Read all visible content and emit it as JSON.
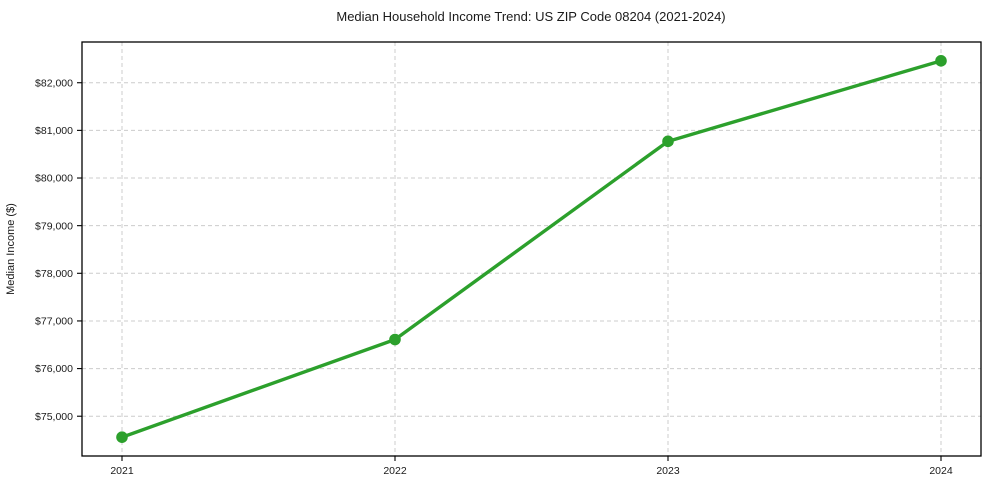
{
  "figure": {
    "background_color": "#ffffff"
  },
  "chart_data": {
    "type": "line",
    "title": "Median Household Income Trend: US ZIP Code 08204 (2021-2024)",
    "xlabel": "",
    "ylabel": "Median Income ($)",
    "categories": [
      "2021",
      "2022",
      "2023",
      "2024"
    ],
    "values": [
      74560,
      76610,
      80770,
      82460
    ],
    "ylim": [
      74165,
      82855
    ],
    "y_ticks": [
      {
        "value": 75000,
        "label": "$75,000"
      },
      {
        "value": 76000,
        "label": "$76,000"
      },
      {
        "value": 77000,
        "label": "$77,000"
      },
      {
        "value": 78000,
        "label": "$78,000"
      },
      {
        "value": 79000,
        "label": "$79,000"
      },
      {
        "value": 80000,
        "label": "$80,000"
      },
      {
        "value": 81000,
        "label": "$81,000"
      },
      {
        "value": 82000,
        "label": "$82,000"
      }
    ],
    "grid": true,
    "grid_style": "dashed",
    "legend_position": "none",
    "line_color": "#2ca02c",
    "marker": "circle",
    "grid_color": "#cccccc",
    "axis_color": "#000000",
    "text_color": "#1a1a1a"
  }
}
